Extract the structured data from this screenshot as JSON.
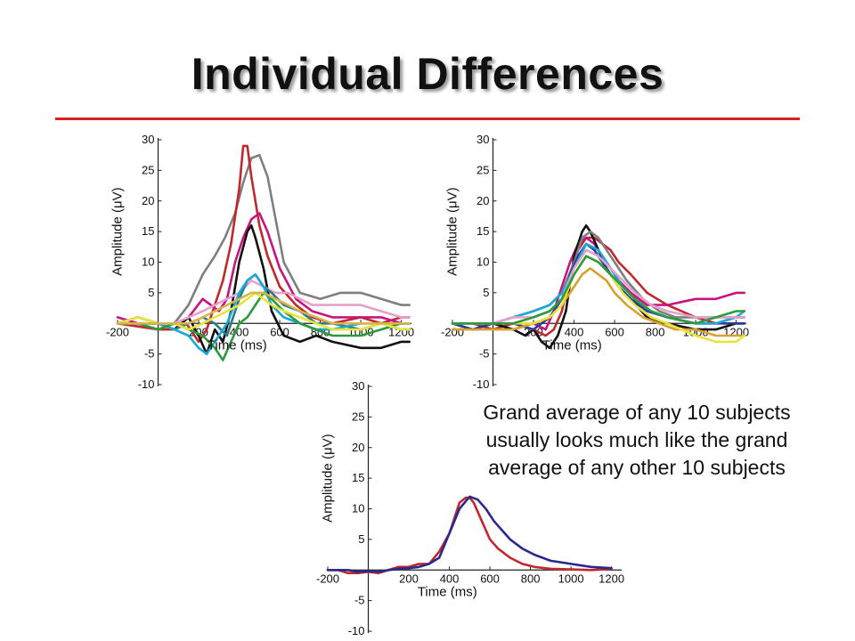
{
  "slide": {
    "title": "Individual Differences",
    "note_lines": [
      "Grand average of any 10 subjects",
      "usually looks much like the grand",
      "average of any other 10 subjects"
    ]
  },
  "chart_data": [
    {
      "type": "line",
      "xlabel": "Time (ms)",
      "ylabel": "Amplitude (μV)",
      "xlim": [
        -200,
        1250
      ],
      "ylim": [
        -10,
        30
      ],
      "xticks": [
        -200,
        200,
        400,
        600,
        800,
        1000,
        1200
      ],
      "yticks": [
        -10,
        -5,
        5,
        10,
        15,
        20,
        25,
        30
      ],
      "series": [
        {
          "color": "#7f7f7f",
          "x": [
            -200,
            -100,
            0,
            80,
            150,
            220,
            280,
            330,
            380,
            420,
            460,
            500,
            540,
            580,
            620,
            700,
            800,
            900,
            1000,
            1100,
            1200,
            1240
          ],
          "y": [
            0,
            0,
            -1,
            0,
            3,
            8,
            11,
            14,
            18,
            23,
            27,
            27.5,
            24,
            17,
            10,
            5,
            4,
            5,
            5,
            4,
            3,
            3
          ]
        },
        {
          "color": "#c0282d",
          "x": [
            -200,
            -100,
            0,
            80,
            140,
            200,
            240,
            280,
            320,
            360,
            400,
            420,
            440,
            460,
            500,
            540,
            600,
            680,
            760,
            860,
            1000,
            1100,
            1200,
            1240
          ],
          "y": [
            0,
            -0.5,
            -1,
            -1,
            0,
            -3,
            -1,
            3,
            7,
            13,
            22,
            29,
            29,
            24,
            16,
            11,
            6,
            3,
            1,
            0,
            1,
            0,
            1,
            1
          ]
        },
        {
          "color": "#c8147e",
          "x": [
            -200,
            -100,
            0,
            80,
            150,
            220,
            260,
            300,
            340,
            380,
            420,
            460,
            500,
            540,
            600,
            680,
            760,
            860,
            1000,
            1100,
            1200,
            1240
          ],
          "y": [
            1,
            0,
            0,
            -1,
            1,
            4,
            3,
            2,
            4,
            10,
            14,
            17,
            18,
            15,
            9,
            4,
            2,
            1,
            1,
            1,
            0,
            0
          ]
        },
        {
          "color": "#111111",
          "x": [
            -200,
            -100,
            0,
            80,
            150,
            200,
            240,
            280,
            320,
            360,
            400,
            440,
            460,
            480,
            520,
            560,
            620,
            700,
            780,
            860,
            1000,
            1100,
            1200,
            1240
          ],
          "y": [
            0,
            1,
            0,
            -1,
            1,
            -2,
            -5,
            -1,
            -3,
            2,
            10,
            15,
            16,
            14,
            9,
            2,
            -2,
            -3,
            -2,
            -3,
            -4,
            -4,
            -3,
            -3
          ]
        },
        {
          "color": "#e6a0cc",
          "x": [
            -200,
            -100,
            0,
            80,
            150,
            220,
            280,
            340,
            400,
            460,
            520,
            580,
            640,
            700,
            760,
            860,
            1000,
            1100,
            1200,
            1240
          ],
          "y": [
            0,
            1,
            0,
            0,
            1,
            2,
            3,
            4,
            5,
            7,
            6,
            5,
            5,
            4,
            3,
            3,
            3,
            2,
            1,
            1
          ]
        },
        {
          "color": "#2a7a8a",
          "x": [
            -200,
            -100,
            0,
            80,
            150,
            220,
            280,
            340,
            400,
            440,
            480,
            520,
            560,
            620,
            700,
            780,
            860,
            1000,
            1100,
            1200,
            1240
          ],
          "y": [
            0,
            0,
            0,
            -1,
            0,
            1,
            0,
            -2,
            4,
            7,
            8,
            6,
            5,
            3,
            2,
            0,
            0,
            -1,
            0,
            0,
            0
          ]
        },
        {
          "color": "#1aa8d8",
          "x": [
            -200,
            -100,
            0,
            80,
            150,
            200,
            240,
            280,
            340,
            400,
            440,
            480,
            520,
            560,
            620,
            700,
            780,
            860,
            1000,
            1100,
            1200,
            1240
          ],
          "y": [
            0,
            0,
            0,
            -1,
            -2,
            -4,
            -5,
            -3,
            0,
            5,
            7,
            8,
            6,
            3,
            1,
            0,
            -1,
            -1,
            0,
            0,
            -1,
            -1
          ]
        },
        {
          "color": "#2d9b3d",
          "x": [
            -200,
            -100,
            0,
            80,
            150,
            220,
            280,
            320,
            360,
            400,
            440,
            480,
            520,
            560,
            620,
            700,
            780,
            860,
            1000,
            1100,
            1200,
            1240
          ],
          "y": [
            0,
            0,
            -1,
            0,
            -1,
            -2,
            -4,
            -6,
            -3,
            0,
            1,
            3,
            5,
            4,
            2,
            0,
            -1,
            -2,
            -2,
            -1,
            0,
            0
          ]
        },
        {
          "color": "#e8e43a",
          "x": [
            -200,
            -100,
            0,
            80,
            150,
            220,
            280,
            340,
            400,
            440,
            480,
            520,
            560,
            620,
            700,
            780,
            860,
            1000,
            1100,
            1200,
            1240
          ],
          "y": [
            0,
            1,
            0,
            0,
            -1,
            0,
            1,
            2,
            3,
            4,
            5,
            4,
            3,
            2,
            1,
            0,
            -1,
            -1,
            0,
            -1,
            -1
          ]
        },
        {
          "color": "#d8b44a",
          "x": [
            -200,
            -100,
            0,
            80,
            150,
            220,
            280,
            340,
            400,
            460,
            520,
            580,
            640,
            700,
            780,
            860,
            1000,
            1100,
            1200,
            1240
          ],
          "y": [
            0,
            0,
            0,
            0,
            0,
            1,
            2,
            3,
            4,
            5,
            5,
            4,
            3,
            2,
            1,
            0,
            0,
            0,
            0,
            0
          ]
        }
      ]
    },
    {
      "type": "line",
      "xlabel": "Time (ms)",
      "ylabel": "Amplitude (μV)",
      "xlim": [
        -200,
        1250
      ],
      "ylim": [
        -10,
        30
      ],
      "xticks": [
        -200,
        200,
        400,
        600,
        800,
        1000,
        1200
      ],
      "yticks": [
        -10,
        -5,
        5,
        10,
        15,
        20,
        25,
        30
      ],
      "series": [
        {
          "color": "#c0282d",
          "x": [
            -200,
            -100,
            0,
            100,
            200,
            260,
            300,
            340,
            380,
            420,
            460,
            500,
            540,
            580,
            620,
            680,
            760,
            860,
            1000,
            1100,
            1200,
            1240
          ],
          "y": [
            0,
            0,
            -1,
            0,
            -1,
            -2,
            -1,
            2,
            8,
            12,
            14,
            14,
            13,
            12,
            10,
            8,
            5,
            3,
            1,
            0,
            1,
            1
          ]
        },
        {
          "color": "#c8147e",
          "x": [
            -200,
            -100,
            0,
            100,
            200,
            260,
            300,
            340,
            380,
            420,
            460,
            500,
            540,
            580,
            620,
            680,
            760,
            860,
            1000,
            1100,
            1200,
            1240
          ],
          "y": [
            0,
            0,
            0,
            -1,
            0,
            -1,
            2,
            6,
            10,
            13,
            14,
            13,
            11,
            9,
            7,
            5,
            3,
            3,
            4,
            4,
            5,
            5
          ]
        },
        {
          "color": "#111111",
          "x": [
            -200,
            -100,
            0,
            100,
            160,
            200,
            240,
            280,
            320,
            360,
            400,
            440,
            460,
            480,
            520,
            560,
            620,
            680,
            760,
            860,
            1000,
            1100,
            1200,
            1240
          ],
          "y": [
            0,
            -1,
            0,
            -1,
            -2,
            -1,
            -3,
            -4,
            -2,
            2,
            11,
            15,
            16,
            15,
            12,
            9,
            6,
            4,
            1,
            0,
            -1,
            -1,
            0,
            0
          ]
        },
        {
          "color": "#7f7f7f",
          "x": [
            -200,
            -100,
            0,
            100,
            200,
            280,
            340,
            400,
            440,
            480,
            520,
            560,
            600,
            660,
            740,
            820,
            900,
            1000,
            1100,
            1200,
            1240
          ],
          "y": [
            0,
            0,
            0,
            1,
            2,
            3,
            5,
            10,
            14,
            15,
            14,
            12,
            10,
            7,
            4,
            2,
            1,
            1,
            1,
            1,
            1
          ]
        },
        {
          "color": "#2a3a9a",
          "x": [
            -200,
            -100,
            0,
            100,
            200,
            280,
            340,
            380,
            420,
            460,
            500,
            540,
            580,
            620,
            680,
            760,
            860,
            1000,
            1100,
            1200,
            1240
          ],
          "y": [
            0,
            -1,
            0,
            0,
            -1,
            1,
            4,
            8,
            11,
            13,
            12,
            10,
            8,
            6,
            4,
            2,
            1,
            0,
            0,
            0,
            0
          ]
        },
        {
          "color": "#1aa8d8",
          "x": [
            -200,
            -100,
            0,
            100,
            200,
            280,
            340,
            400,
            460,
            520,
            580,
            640,
            700,
            780,
            860,
            1000,
            1100,
            1200,
            1240
          ],
          "y": [
            0,
            0,
            0,
            1,
            2,
            3,
            5,
            9,
            13,
            12,
            9,
            6,
            4,
            2,
            1,
            0,
            0,
            1,
            2
          ]
        },
        {
          "color": "#e6a0cc",
          "x": [
            -200,
            -100,
            0,
            100,
            200,
            280,
            340,
            400,
            460,
            520,
            580,
            640,
            700,
            780,
            860,
            1000,
            1100,
            1200,
            1240
          ],
          "y": [
            0,
            0,
            0,
            1,
            1,
            2,
            4,
            9,
            12,
            11,
            9,
            7,
            5,
            3,
            2,
            1,
            1,
            1,
            1
          ]
        },
        {
          "color": "#d8a030",
          "x": [
            -200,
            -100,
            0,
            100,
            200,
            280,
            340,
            400,
            440,
            480,
            520,
            560,
            600,
            660,
            740,
            820,
            900,
            1000,
            1100,
            1200,
            1240
          ],
          "y": [
            -1,
            -1,
            -1,
            -1,
            0,
            1,
            3,
            6,
            8,
            9,
            8,
            7,
            5,
            3,
            1,
            0,
            -1,
            -1,
            -2,
            -2,
            -2
          ]
        },
        {
          "color": "#e8e43a",
          "x": [
            -200,
            -100,
            0,
            100,
            200,
            280,
            340,
            400,
            460,
            520,
            580,
            640,
            700,
            780,
            860,
            1000,
            1100,
            1200,
            1240
          ],
          "y": [
            0,
            0,
            0,
            0,
            0,
            1,
            3,
            8,
            11,
            10,
            8,
            5,
            3,
            1,
            0,
            -2,
            -3,
            -3,
            -2
          ]
        },
        {
          "color": "#2d9b3d",
          "x": [
            -200,
            -100,
            0,
            100,
            200,
            280,
            340,
            400,
            460,
            520,
            580,
            640,
            700,
            780,
            860,
            1000,
            1100,
            1200,
            1240
          ],
          "y": [
            0,
            0,
            0,
            0,
            1,
            2,
            4,
            8,
            11,
            10,
            8,
            6,
            4,
            2,
            1,
            0,
            1,
            2,
            2
          ]
        }
      ]
    },
    {
      "type": "line",
      "xlabel": "Time (ms)",
      "ylabel": "Amplitude (μV)",
      "xlim": [
        -200,
        1250
      ],
      "ylim": [
        -10,
        30
      ],
      "xticks": [
        -200,
        200,
        400,
        600,
        800,
        1000,
        1200
      ],
      "yticks": [
        -10,
        -5,
        5,
        10,
        15,
        20,
        25,
        30
      ],
      "series": [
        {
          "color": "#c0282d",
          "x": [
            -200,
            -150,
            -100,
            -50,
            0,
            50,
            100,
            150,
            200,
            250,
            300,
            350,
            400,
            450,
            480,
            500,
            520,
            560,
            600,
            640,
            700,
            760,
            820,
            900,
            1000,
            1100,
            1200
          ],
          "y": [
            0,
            0,
            -0.5,
            -0.5,
            -0.3,
            -0.5,
            0,
            0.5,
            0.5,
            1,
            1,
            3,
            6,
            11,
            11.8,
            11.8,
            11,
            8,
            5,
            3.5,
            2,
            1,
            0.5,
            0.2,
            0.1,
            0,
            0.2
          ]
        },
        {
          "color": "#2a2a8c",
          "x": [
            -200,
            -150,
            -100,
            -50,
            0,
            50,
            100,
            150,
            200,
            250,
            300,
            350,
            400,
            450,
            500,
            540,
            580,
            620,
            660,
            700,
            760,
            820,
            900,
            1000,
            1100,
            1200
          ],
          "y": [
            0,
            0,
            0,
            -0.3,
            -0.2,
            -0.3,
            0,
            0.2,
            0.3,
            0.5,
            1,
            2,
            6,
            10,
            12,
            11.5,
            10,
            8,
            6.5,
            5,
            3.5,
            2.5,
            1.5,
            1,
            0.5,
            0.3
          ]
        }
      ]
    }
  ]
}
